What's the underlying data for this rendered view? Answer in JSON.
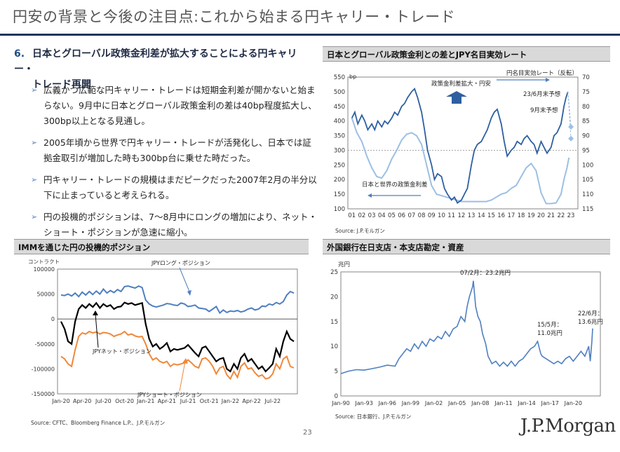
{
  "header": {
    "title": "円安の背景と今後の注目点:これから始まる円キャリー・トレード"
  },
  "lead": {
    "number": "6.",
    "line1": "日本とグローバル政策金利差が拡大することによる円キャリー・",
    "line2": "トレード再開"
  },
  "bullets": [
    "広義かつ広範な円キャリー・トレードは短期金利差が開かないと始まらない。9月中に日本とグローバル政策金利の差は40bp程度拡大し、300bp以上となる見通し。",
    "2005年頃から世界で円キャリー・トレードが活発化し、日本では証拠金取引が増加した時も300bp台に乗せた時だった。",
    "円キャリー・トレードの規模はまだピークだった2007年2月の半分以下に止まっていると考えられる。",
    "円の投機的ポジションは、7～8月中にロングの増加により、ネット・ショート・ポジションが急速に縮小。"
  ],
  "footer": {
    "page": "23",
    "logo": "J.P.Morgan"
  },
  "colors": {
    "dark_blue": "#2e5fa0",
    "light_blue": "#9dbfe3",
    "orange": "#f0883a",
    "black": "#000000",
    "steel": "#4f7fc0",
    "title_rule": "#17365d"
  },
  "chart_data": [
    {
      "id": "spread",
      "type": "line",
      "title": "日本とグローバル政策金利との差とJPY名目実効レート",
      "source": "Source: J.P.モルガン",
      "y_unit": "bp",
      "ylim": [
        100,
        550
      ],
      "yticks": [
        "550",
        "500",
        "450",
        "400",
        "350",
        "300",
        "250",
        "200",
        "150",
        "100"
      ],
      "y2lim": [
        70,
        115
      ],
      "y2_reversed": true,
      "y2ticks": [
        "70",
        "75",
        "80",
        "85",
        "90",
        "95",
        "100",
        "105",
        "110",
        "115"
      ],
      "categories": [
        "01",
        "02",
        "03",
        "04",
        "05",
        "06",
        "07",
        "08",
        "09",
        "10",
        "11",
        "12",
        "13",
        "14",
        "15",
        "16",
        "17",
        "18",
        "19",
        "20",
        "21",
        "22",
        "23"
      ],
      "annotations": {
        "up_arrow_label": "政策金利差拡大・円安",
        "right_series_label": "円名目実効レート（反転）",
        "left_series_label": "日本と世界の政策金利差",
        "forecast_a": "23/6月末予想",
        "forecast_b": "9月末予想"
      },
      "series": [
        {
          "name": "日本と世界の政策金利差",
          "axis": "left",
          "color": "#9dbfe3",
          "x": [
            2001.0,
            2001.5,
            2002.0,
            2002.5,
            2003.0,
            2003.5,
            2004.0,
            2004.5,
            2005.0,
            2005.5,
            2006.0,
            2006.5,
            2007.0,
            2007.5,
            2008.0,
            2008.5,
            2009.0,
            2009.5,
            2010.0,
            2010.5,
            2011.0,
            2011.5,
            2012.0,
            2012.5,
            2013.0,
            2013.5,
            2014.0,
            2014.5,
            2015.0,
            2015.5,
            2016.0,
            2016.5,
            2017.0,
            2017.5,
            2018.0,
            2018.5,
            2019.0,
            2019.5,
            2020.0,
            2020.5,
            2021.0,
            2021.5,
            2022.0,
            2022.3,
            2022.6,
            2022.8
          ],
          "y": [
            410,
            360,
            330,
            280,
            240,
            210,
            205,
            230,
            270,
            300,
            335,
            355,
            360,
            350,
            320,
            250,
            180,
            150,
            145,
            140,
            135,
            130,
            125,
            125,
            125,
            125,
            125,
            125,
            130,
            140,
            150,
            155,
            170,
            180,
            210,
            240,
            255,
            230,
            155,
            118,
            118,
            120,
            150,
            200,
            240,
            275
          ]
        },
        {
          "name": "円名目実効レート（反転）",
          "axis": "right",
          "color": "#2e5fa0",
          "x": [
            2001.0,
            2001.3,
            2001.6,
            2002.0,
            2002.3,
            2002.6,
            2003.0,
            2003.3,
            2003.6,
            2004.0,
            2004.3,
            2004.6,
            2005.0,
            2005.3,
            2005.6,
            2006.0,
            2006.3,
            2006.6,
            2007.0,
            2007.3,
            2007.6,
            2008.0,
            2008.3,
            2008.6,
            2009.0,
            2009.3,
            2009.6,
            2010.0,
            2010.3,
            2010.6,
            2011.0,
            2011.3,
            2011.6,
            2012.0,
            2012.3,
            2012.6,
            2013.0,
            2013.3,
            2013.6,
            2014.0,
            2014.3,
            2014.6,
            2015.0,
            2015.3,
            2015.6,
            2016.0,
            2016.3,
            2016.6,
            2017.0,
            2017.3,
            2017.6,
            2018.0,
            2018.3,
            2018.6,
            2019.0,
            2019.3,
            2019.6,
            2020.0,
            2020.3,
            2020.6,
            2021.0,
            2021.3,
            2021.6,
            2022.0,
            2022.3,
            2022.5,
            2022.7
          ],
          "y": [
            84,
            82,
            86,
            83,
            85,
            88,
            86,
            88,
            85,
            87,
            85,
            86,
            84,
            82,
            83,
            80,
            79,
            77,
            75,
            74,
            77,
            82,
            88,
            95,
            100,
            105,
            103,
            104,
            108,
            110,
            112,
            111,
            113,
            112,
            110,
            108,
            100,
            95,
            93,
            92,
            90,
            88,
            84,
            82,
            81,
            86,
            92,
            97,
            95,
            94,
            92,
            93,
            91,
            90,
            92,
            93,
            96,
            92,
            94,
            96,
            94,
            90,
            89,
            86,
            80,
            77,
            75
          ]
        }
      ],
      "forecast_points": [
        {
          "x": 2023.0,
          "y2": 87
        },
        {
          "x": 2023.0,
          "y2": 91
        }
      ]
    },
    {
      "id": "imm",
      "type": "line",
      "title": "IMMを通じた円の投機的ポジション",
      "source": "Source: CFTC、Bloomberg Finance L.P.、J.P.モルガン",
      "y_unit": "コントラクト",
      "ylim": [
        -150000,
        100000
      ],
      "yticks": [
        "100000",
        "50000",
        "0",
        "-50000",
        "-100000",
        "-150000"
      ],
      "xticks": [
        "Jan-20",
        "Apr-20",
        "Jul-20",
        "Oct-20",
        "Jan-21",
        "Apr-21",
        "Jul-21",
        "Oct-21",
        "Jan-22",
        "Apr-22",
        "Jul-22"
      ],
      "labels": {
        "long": "JPYロング・ポジション",
        "net": "JPYネット・ポジション",
        "short": "JPYショート・ポジション"
      },
      "series": [
        {
          "name": "JPYロング・ポジション",
          "color": "#4f7fc0",
          "x": [
            0,
            0.5,
            1,
            1.5,
            2,
            2.5,
            3,
            3.5,
            4,
            4.5,
            5,
            5.5,
            6,
            6.5,
            7,
            7.5,
            8,
            8.5,
            9,
            9.5,
            10,
            10.5,
            11,
            11.5,
            12,
            12.5,
            13,
            13.5,
            14,
            14.5,
            15,
            15.5,
            16,
            16.5,
            17,
            17.5,
            18,
            18.5,
            19,
            19.5,
            20,
            20.5,
            21,
            21.5,
            22,
            22.5,
            23,
            23.5,
            24,
            24.5,
            25,
            25.5,
            26,
            26.5,
            27,
            27.5,
            28,
            28.5,
            29,
            29.5,
            30,
            30.5,
            31,
            31.5,
            32,
            32.5,
            33
          ],
          "y": [
            48000,
            47000,
            50000,
            46000,
            52000,
            45000,
            54000,
            48000,
            55000,
            49000,
            56000,
            50000,
            60000,
            52000,
            57000,
            53000,
            59000,
            55000,
            65000,
            66000,
            64000,
            62000,
            66000,
            63000,
            38000,
            30000,
            26000,
            24000,
            26000,
            28000,
            31000,
            30000,
            28000,
            27000,
            32000,
            30000,
            25000,
            26000,
            28000,
            22000,
            21000,
            20000,
            15000,
            20000,
            25000,
            12000,
            18000,
            13000,
            16000,
            15000,
            17000,
            14000,
            16000,
            20000,
            22000,
            18000,
            20000,
            26000,
            25000,
            30000,
            28000,
            33000,
            30000,
            35000,
            48000,
            55000,
            52000
          ]
        },
        {
          "name": "JPYネット・ポジション",
          "color": "#000000",
          "x": [
            0,
            0.5,
            1,
            1.5,
            2,
            2.5,
            3,
            3.5,
            4,
            4.5,
            5,
            5.5,
            6,
            6.5,
            7,
            7.5,
            8,
            8.5,
            9,
            9.5,
            10,
            10.5,
            11,
            11.5,
            12,
            12.5,
            13,
            13.5,
            14,
            14.5,
            15,
            15.5,
            16,
            16.5,
            17,
            17.5,
            18,
            18.5,
            19,
            19.5,
            20,
            20.5,
            21,
            21.5,
            22,
            22.5,
            23,
            23.5,
            24,
            24.5,
            25,
            25.5,
            26,
            26.5,
            27,
            27.5,
            28,
            28.5,
            29,
            29.5,
            30,
            30.5,
            31,
            31.5,
            32,
            32.5,
            33
          ],
          "y": [
            -5000,
            -20000,
            -45000,
            -50000,
            -5000,
            20000,
            28000,
            22000,
            30000,
            24000,
            32000,
            22000,
            30000,
            25000,
            28000,
            20000,
            24000,
            25000,
            33000,
            30000,
            32000,
            28000,
            30000,
            32000,
            -10000,
            -40000,
            -55000,
            -50000,
            -60000,
            -55000,
            -48000,
            -65000,
            -60000,
            -62000,
            -60000,
            -58000,
            -52000,
            -60000,
            -68000,
            -75000,
            -58000,
            -55000,
            -65000,
            -75000,
            -85000,
            -80000,
            -78000,
            -100000,
            -105000,
            -90000,
            -100000,
            -78000,
            -70000,
            -85000,
            -80000,
            -90000,
            -100000,
            -95000,
            -105000,
            -98000,
            -90000,
            -60000,
            -75000,
            -45000,
            -25000,
            -40000,
            -45000
          ]
        },
        {
          "name": "JPYショート・ポジション",
          "color": "#f0883a",
          "x": [
            0,
            0.5,
            1,
            1.5,
            2,
            2.5,
            3,
            3.5,
            4,
            4.5,
            5,
            5.5,
            6,
            6.5,
            7,
            7.5,
            8,
            8.5,
            9,
            9.5,
            10,
            10.5,
            11,
            11.5,
            12,
            12.5,
            13,
            13.5,
            14,
            14.5,
            15,
            15.5,
            16,
            16.5,
            17,
            17.5,
            18,
            18.5,
            19,
            19.5,
            20,
            20.5,
            21,
            21.5,
            22,
            22.5,
            23,
            23.5,
            24,
            24.5,
            25,
            25.5,
            26,
            26.5,
            27,
            27.5,
            28,
            28.5,
            29,
            29.5,
            30,
            30.5,
            31,
            31.5,
            32,
            32.5,
            33
          ],
          "y": [
            -75000,
            -80000,
            -90000,
            -95000,
            -62000,
            -35000,
            -28000,
            -30000,
            -25000,
            -28000,
            -26000,
            -30000,
            -27000,
            -28000,
            -30000,
            -35000,
            -32000,
            -30000,
            -25000,
            -32000,
            -30000,
            -34000,
            -36000,
            -35000,
            -50000,
            -70000,
            -82000,
            -78000,
            -85000,
            -88000,
            -85000,
            -95000,
            -90000,
            -92000,
            -90000,
            -88000,
            -82000,
            -88000,
            -95000,
            -98000,
            -80000,
            -78000,
            -85000,
            -95000,
            -110000,
            -98000,
            -95000,
            -112000,
            -120000,
            -105000,
            -117000,
            -95000,
            -88000,
            -100000,
            -98000,
            -108000,
            -115000,
            -112000,
            -120000,
            -118000,
            -110000,
            -90000,
            -100000,
            -80000,
            -75000,
            -95000,
            -98000
          ]
        }
      ]
    },
    {
      "id": "banks",
      "type": "line",
      "title": "外国銀行在日支店・本支店勘定・資産",
      "source": "Source: 日本銀行、J.P.モルガン",
      "y_unit": "兆円",
      "ylim": [
        0,
        25
      ],
      "yticks": [
        "25",
        "20",
        "15",
        "10",
        "5",
        "0"
      ],
      "xticks": [
        "Jan-90",
        "Jan-93",
        "Jan-96",
        "Jan-99",
        "Jan-02",
        "Jan-05",
        "Jan-08",
        "Jan-11",
        "Jan-14",
        "Jan-17",
        "Jan-20"
      ],
      "annotations": [
        {
          "line1": "07/2月：23.2兆円",
          "line2": ""
        },
        {
          "line1": "15/5月：",
          "line2": "11.0兆円"
        },
        {
          "line1": "22/6月：",
          "line2": "13.6兆円"
        }
      ],
      "series": [
        {
          "name": "",
          "color": "#4f7fc0",
          "x": [
            1990.0,
            1991.0,
            1992.0,
            1993.0,
            1994.0,
            1995.0,
            1996.0,
            1997.0,
            1997.5,
            1998.0,
            1998.5,
            1999.0,
            1999.5,
            2000.0,
            2000.5,
            2001.0,
            2001.5,
            2002.0,
            2002.5,
            2003.0,
            2003.5,
            2004.0,
            2004.5,
            2005.0,
            2005.5,
            2006.0,
            2006.3,
            2006.6,
            2007.0,
            2007.1,
            2007.4,
            2007.7,
            2008.0,
            2008.3,
            2008.7,
            2009.0,
            2009.5,
            2010.0,
            2010.5,
            2011.0,
            2011.5,
            2012.0,
            2012.5,
            2013.0,
            2013.5,
            2014.0,
            2014.5,
            2015.0,
            2015.4,
            2015.8,
            2016.0,
            2016.5,
            2017.0,
            2017.5,
            2018.0,
            2018.5,
            2019.0,
            2019.5,
            2020.0,
            2020.5,
            2021.0,
            2021.5,
            2022.0,
            2022.2,
            2022.4,
            2022.5
          ],
          "y": [
            4.5,
            5.0,
            5.3,
            5.2,
            5.5,
            5.8,
            6.2,
            6.0,
            7.5,
            8.5,
            9.5,
            9.0,
            10.5,
            9.5,
            11.0,
            10.0,
            11.5,
            11.0,
            12.0,
            11.5,
            13.0,
            12.0,
            13.5,
            14.0,
            16.0,
            15.0,
            18.0,
            20.0,
            22.0,
            23.2,
            18.0,
            16.0,
            15.0,
            12.5,
            10.5,
            8.0,
            6.5,
            7.0,
            6.0,
            6.8,
            6.0,
            7.0,
            6.0,
            7.0,
            7.5,
            8.5,
            9.5,
            10.0,
            11.0,
            8.5,
            8.0,
            7.5,
            7.0,
            6.5,
            7.0,
            6.5,
            7.5,
            8.0,
            7.0,
            8.0,
            9.0,
            8.0,
            10.0,
            7.0,
            11.0,
            13.6
          ]
        }
      ]
    }
  ]
}
